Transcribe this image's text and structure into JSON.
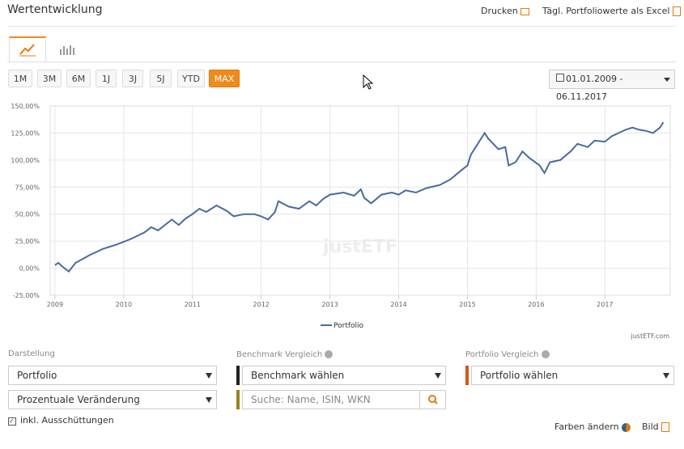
{
  "header": {
    "title": "Wertentwicklung",
    "print": "Drucken",
    "excel": "Tägl. Portfoliowerte als Excel"
  },
  "toolbar": {
    "ranges": [
      "1M",
      "3M",
      "6M",
      "1J",
      "3J",
      "5J",
      "YTD",
      "MAX"
    ],
    "active": "MAX",
    "date_range": "01.01.2009 - 06.11.2017"
  },
  "chart_data": {
    "type": "line",
    "watermark": "justETF",
    "credit": "justETF.com",
    "x": [
      2009.0,
      2009.05,
      2009.1,
      2009.2,
      2009.3,
      2009.5,
      2009.7,
      2009.9,
      2010.1,
      2010.3,
      2010.4,
      2010.5,
      2010.7,
      2010.8,
      2010.9,
      2011.0,
      2011.1,
      2011.2,
      2011.35,
      2011.5,
      2011.6,
      2011.75,
      2011.9,
      2012.0,
      2012.1,
      2012.2,
      2012.25,
      2012.4,
      2012.55,
      2012.7,
      2012.8,
      2012.9,
      2013.0,
      2013.2,
      2013.35,
      2013.45,
      2013.5,
      2013.6,
      2013.75,
      2013.9,
      2014.0,
      2014.1,
      2014.25,
      2014.4,
      2014.6,
      2014.75,
      2014.9,
      2015.0,
      2015.05,
      2015.15,
      2015.25,
      2015.3,
      2015.45,
      2015.55,
      2015.6,
      2015.7,
      2015.8,
      2015.9,
      2016.05,
      2016.12,
      2016.2,
      2016.35,
      2016.5,
      2016.6,
      2016.75,
      2016.85,
      2017.0,
      2017.1,
      2017.2,
      2017.3,
      2017.4,
      2017.5,
      2017.6,
      2017.7,
      2017.8,
      2017.85
    ],
    "series": [
      {
        "name": "Portfolio",
        "color": "#4a6aa0",
        "values": [
          3,
          5,
          2,
          -3,
          5,
          12,
          18,
          22,
          27,
          33,
          38,
          35,
          45,
          40,
          46,
          50,
          55,
          52,
          58,
          53,
          48,
          50,
          50,
          48,
          45,
          52,
          62,
          57,
          55,
          62,
          58,
          64,
          68,
          70,
          67,
          73,
          65,
          60,
          68,
          70,
          68,
          72,
          70,
          74,
          77,
          82,
          90,
          95,
          105,
          115,
          125,
          120,
          110,
          112,
          95,
          98,
          108,
          102,
          95,
          88,
          98,
          100,
          108,
          115,
          112,
          118,
          117,
          122,
          125,
          128,
          130,
          128,
          127,
          125,
          130,
          135
        ]
      }
    ],
    "xlim": [
      2008.93,
      2017.95
    ],
    "xticks": [
      2009,
      2010,
      2011,
      2012,
      2013,
      2014,
      2015,
      2016,
      2017
    ],
    "ylim": [
      -25,
      150
    ],
    "yticks": [
      {
        "value": -25,
        "label": "-25,00%"
      },
      {
        "value": 0,
        "label": "0,00%"
      },
      {
        "value": 25,
        "label": "25,00%"
      },
      {
        "value": 50,
        "label": "50,00%"
      },
      {
        "value": 75,
        "label": "75,00%"
      },
      {
        "value": 100,
        "label": "100,00%"
      },
      {
        "value": 125,
        "label": "125,00%"
      },
      {
        "value": 150,
        "label": "150,00%"
      }
    ],
    "grid": true
  },
  "controls": {
    "display_label": "Darstellung",
    "display_select": "Portfolio",
    "mode_select": "Prozentuale Veränderung",
    "checkbox": "inkl. Ausschüttungen",
    "benchmark_label": "Benchmark Vergleich",
    "benchmark_select": "Benchmark wählen",
    "search_placeholder": "Suche: Name, ISIN, WKN",
    "portfolio_label": "Portfolio Vergleich",
    "portfolio_select": "Portfolio wählen",
    "colors": "Farben ändern",
    "image": "Bild"
  }
}
